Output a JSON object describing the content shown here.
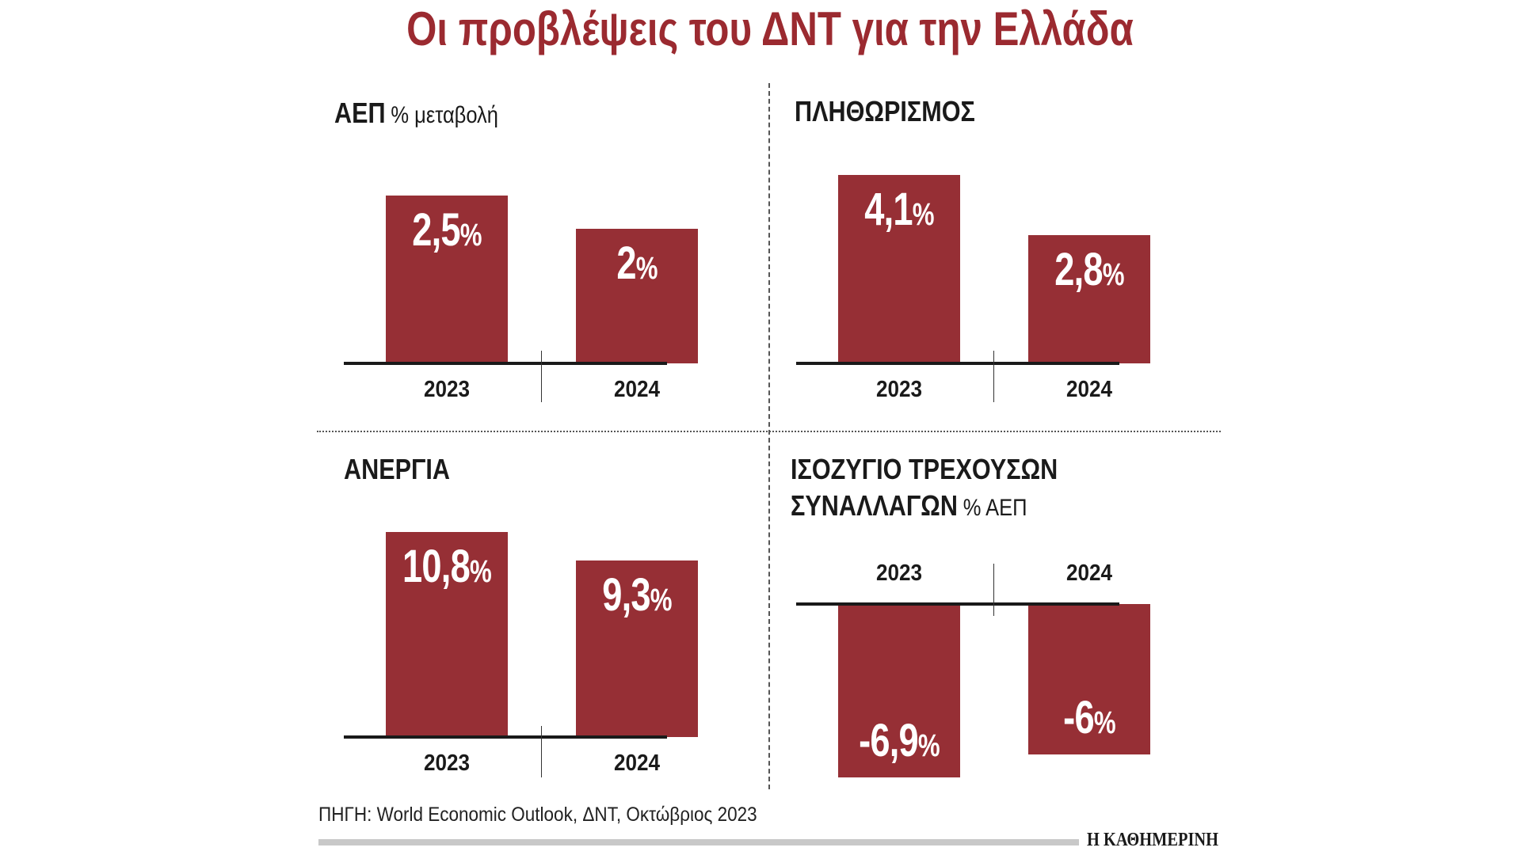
{
  "title": "Οι προβλέψεις του ΔΝΤ για την Ελλάδα",
  "colors": {
    "bar": "#962f35",
    "title": "#9b2a30"
  },
  "chart_data": [
    {
      "type": "bar",
      "title": "ΑΕΠ",
      "subtitle": "% μεταβολή",
      "categories": [
        "2023",
        "2024"
      ],
      "values": [
        2.5,
        2.0
      ],
      "labels": [
        "2,5",
        "2"
      ]
    },
    {
      "type": "bar",
      "title": "ΠΛΗΘΩΡΙΣΜΟΣ",
      "subtitle": "",
      "categories": [
        "2023",
        "2024"
      ],
      "values": [
        4.1,
        2.8
      ],
      "labels": [
        "4,1",
        "2,8"
      ]
    },
    {
      "type": "bar",
      "title": "ΑΝΕΡΓΙΑ",
      "subtitle": "",
      "categories": [
        "2023",
        "2024"
      ],
      "values": [
        10.8,
        9.3
      ],
      "labels": [
        "10,8",
        "9,3"
      ]
    },
    {
      "type": "bar",
      "title": "ΙΣΟΖΥΓΙΟ ΤΡΕΧΟΥΣΩΝ",
      "title_line2": "ΣΥΝΑΛΛΑΓΩΝ",
      "subtitle": "% ΑΕΠ",
      "categories": [
        "2023",
        "2024"
      ],
      "values": [
        -6.9,
        -6.0
      ],
      "labels": [
        "-6,9",
        "-6"
      ]
    }
  ],
  "percent_sign": "%",
  "source": "ΠΗΓΗ: World Economic Outlook, ΔΝΤ, Οκτώβριος 2023",
  "logo": "Η ΚΑΘΗΜΕΡΙΝΗ"
}
